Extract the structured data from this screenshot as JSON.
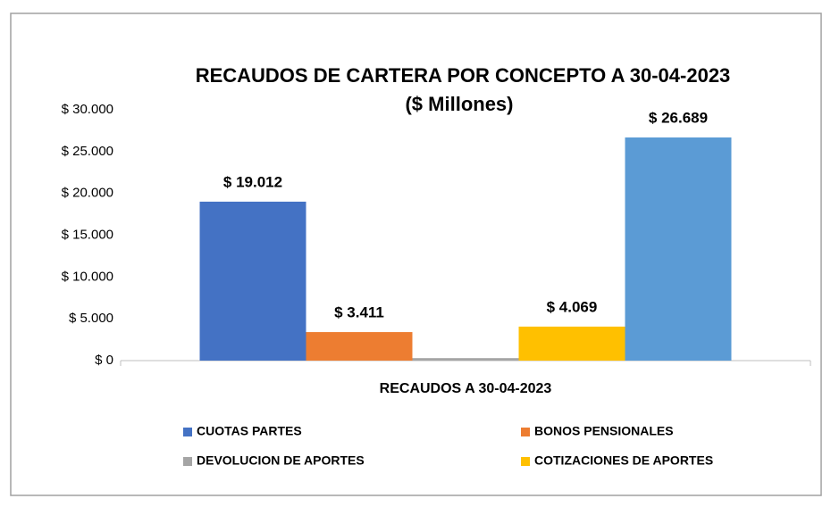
{
  "chart_data": {
    "type": "bar",
    "title": "RECAUDOS DE CARTERA  POR CONCEPTO A 30-04-2023",
    "subtitle": "($ Millones)",
    "categories": [
      "RECAUDOS A 30-04-2023"
    ],
    "series": [
      {
        "name": "CUOTAS PARTES",
        "color": "#4472c4",
        "values": [
          19012
        ],
        "value_labels": [
          "$ 19.012"
        ]
      },
      {
        "name": "BONOS PENSIONALES",
        "color": "#ed7d31",
        "values": [
          3411
        ],
        "value_labels": [
          "$ 3.411"
        ]
      },
      {
        "name": "DEVOLUCION DE APORTES",
        "color": "#a5a5a5",
        "values": [
          300
        ]
      },
      {
        "name": "COTIZACIONES DE APORTES",
        "color": "#ffc000",
        "values": [
          4069
        ],
        "value_labels": [
          "$ 4.069"
        ]
      },
      {
        "name": null,
        "color": "#5b9bd5",
        "values": [
          26689
        ],
        "value_labels": [
          "$ 26.689"
        ]
      }
    ],
    "ylim": [
      0,
      30000
    ],
    "yticks": [
      {
        "value": 0,
        "label": "$ 0"
      },
      {
        "value": 5000,
        "label": "$ 5.000"
      },
      {
        "value": 10000,
        "label": "$ 10.000"
      },
      {
        "value": 15000,
        "label": "$ 15.000"
      },
      {
        "value": 20000,
        "label": "$ 20.000"
      },
      {
        "value": 25000,
        "label": "$ 25.000"
      },
      {
        "value": 30000,
        "label": "$ 30.000"
      }
    ],
    "grid": false,
    "legend": "bottom"
  }
}
